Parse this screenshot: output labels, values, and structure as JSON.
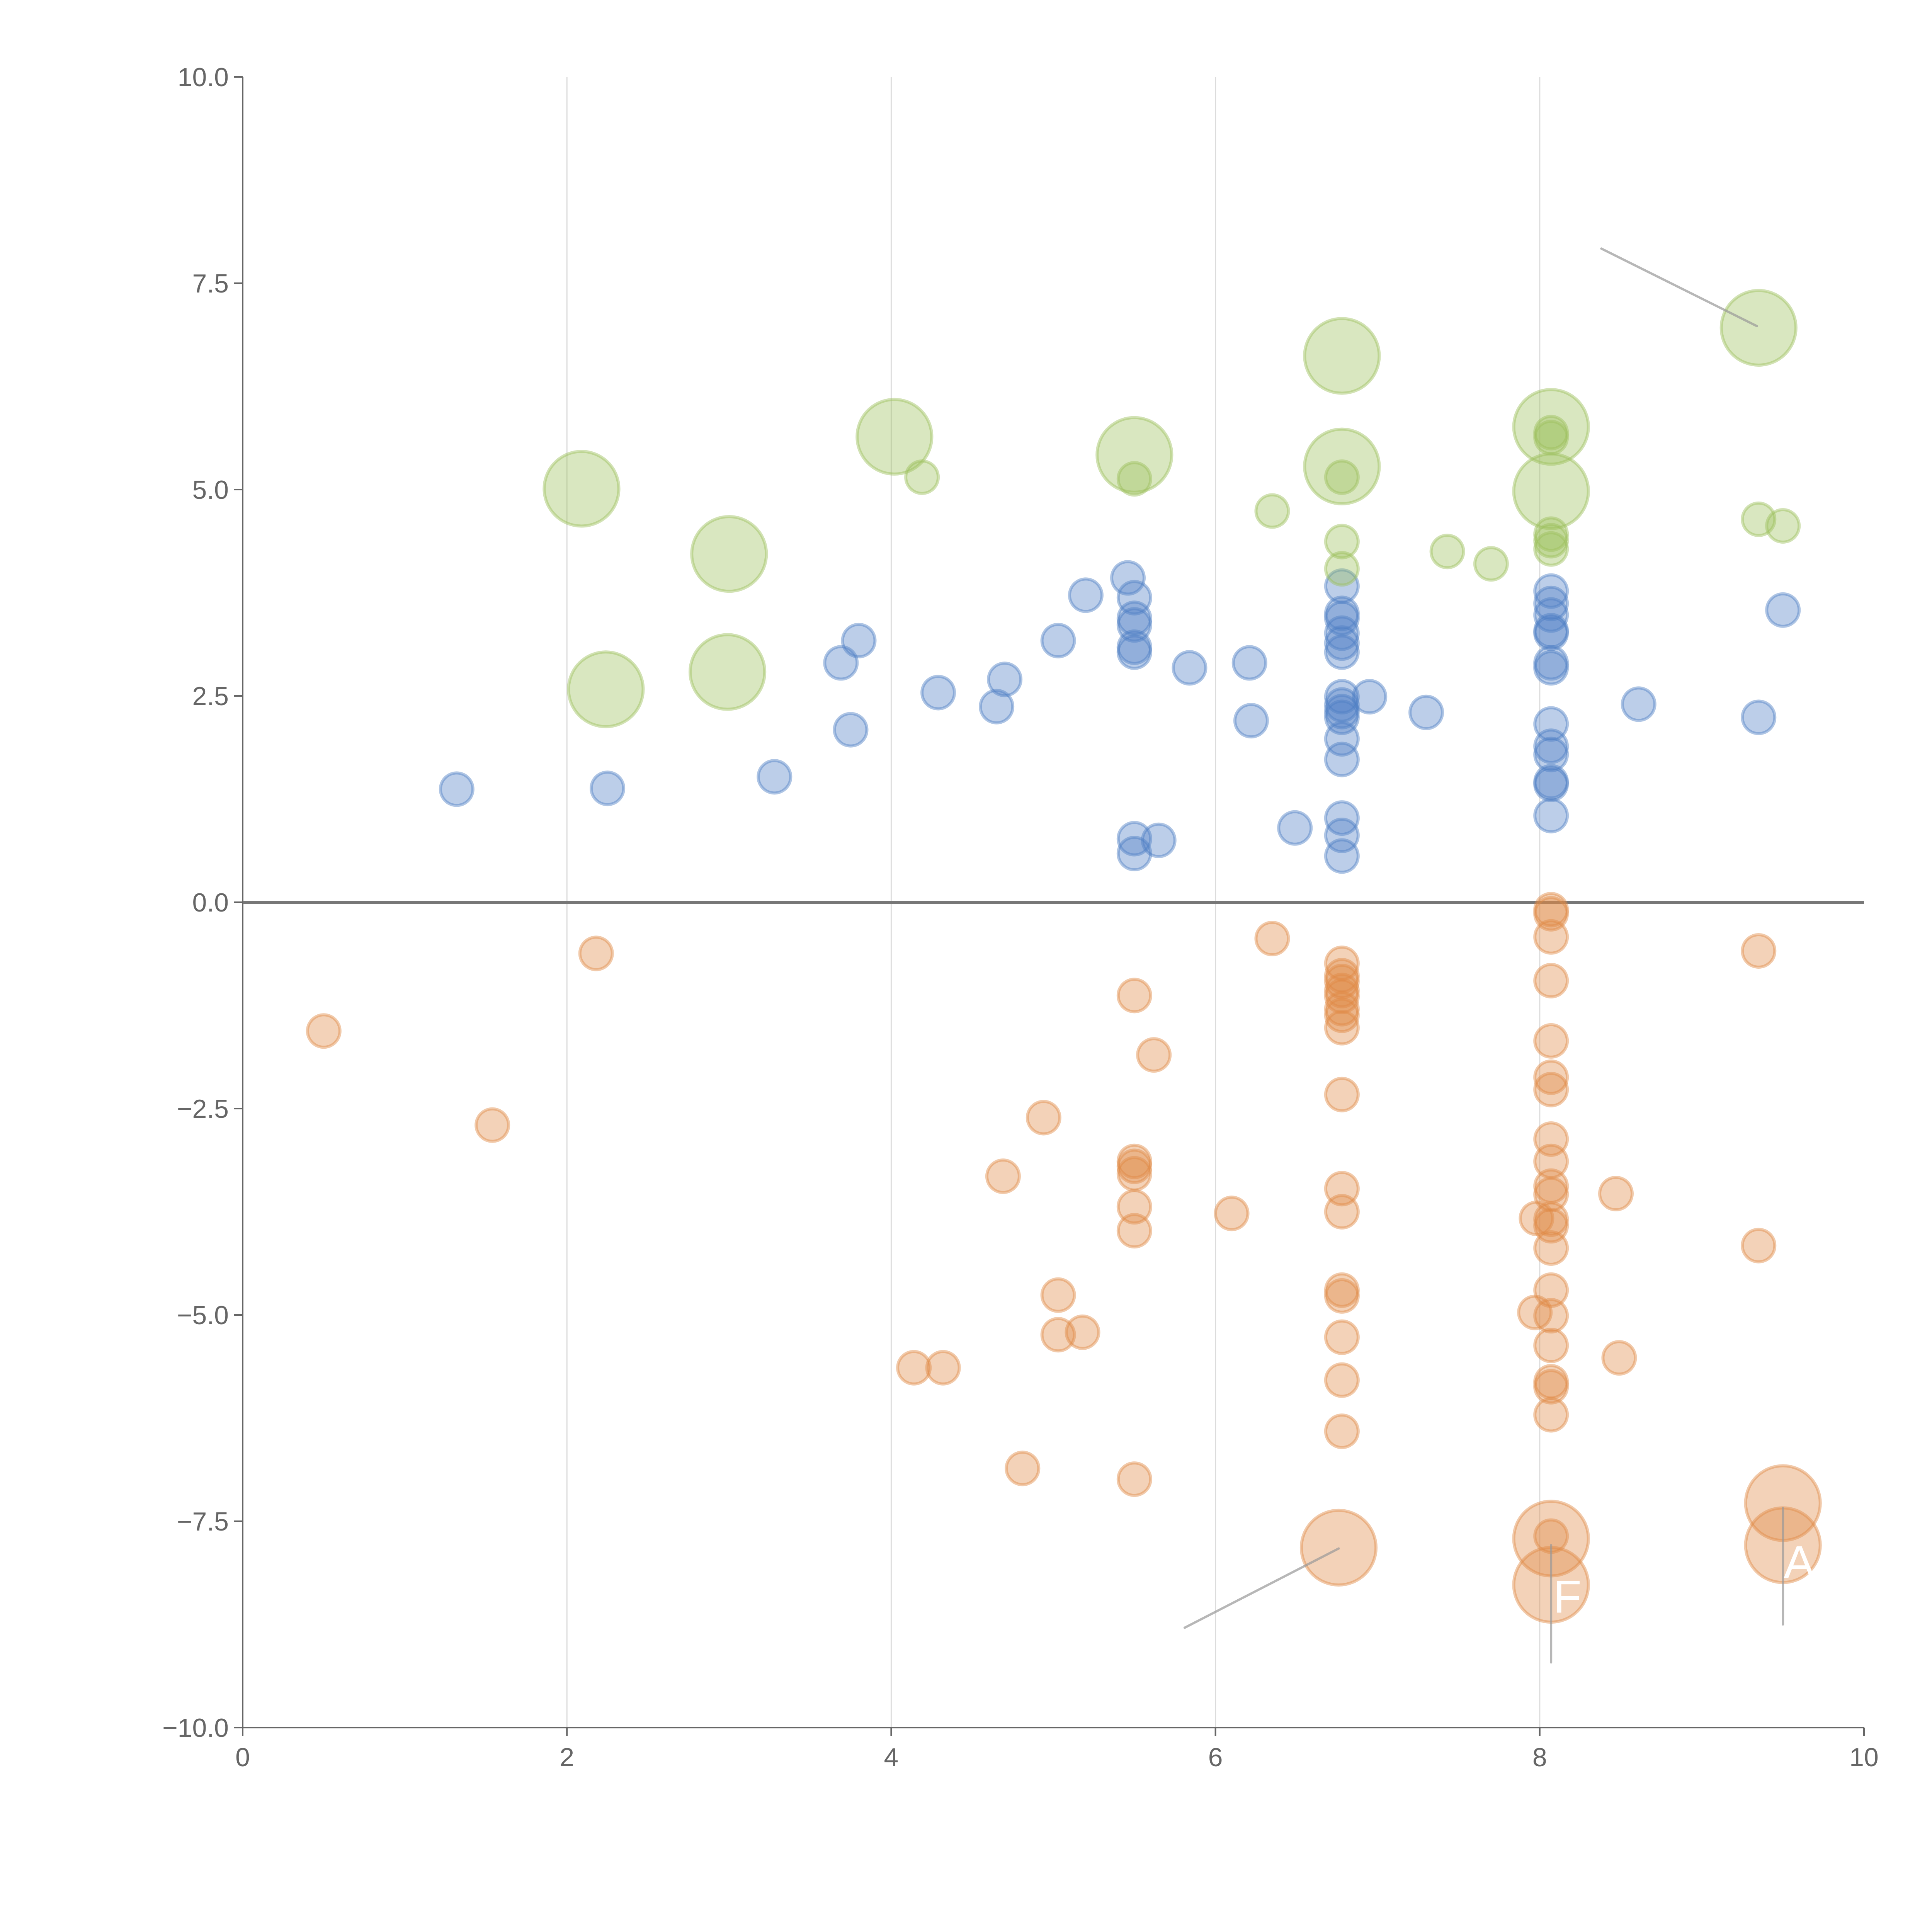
{
  "chart_data": {
    "type": "scatter",
    "title": "",
    "xlabel": "",
    "ylabel": "",
    "xlim": [
      0,
      10
    ],
    "ylim": [
      -10,
      10
    ],
    "xticks": [
      "0",
      "2",
      "4",
      "6",
      "8",
      "10"
    ],
    "xtick_values": [
      0,
      2,
      4,
      6,
      8,
      10
    ],
    "yticks": [
      "10.0",
      "7.5",
      "5.0",
      "2.5",
      "0.0",
      "−2.5",
      "−5.0",
      "−7.5",
      "−10.0"
    ],
    "ytick_values": [
      10,
      7.5,
      5,
      2.5,
      0,
      -2.5,
      -5,
      -7.5,
      -10
    ],
    "grid": "vertical",
    "reference_line_y": 0,
    "series": [
      {
        "name": "blue",
        "color": "#4e7fc4",
        "points": [
          [
            1.32,
            1.37,
            1
          ],
          [
            2.25,
            1.38,
            1
          ],
          [
            3.28,
            1.52,
            1
          ],
          [
            3.69,
            2.9,
            1
          ],
          [
            3.8,
            3.17,
            1
          ],
          [
            3.75,
            2.09,
            1
          ],
          [
            4.29,
            2.54,
            1
          ],
          [
            4.65,
            2.37,
            1
          ],
          [
            4.7,
            2.7,
            1
          ],
          [
            5.03,
            3.17,
            1
          ],
          [
            5.2,
            3.72,
            1
          ],
          [
            5.46,
            3.93,
            1
          ],
          [
            5.5,
            3.69,
            1
          ],
          [
            5.5,
            3.44,
            1
          ],
          [
            5.5,
            3.36,
            1
          ],
          [
            5.5,
            3.09,
            1
          ],
          [
            5.5,
            3.03,
            1
          ],
          [
            5.84,
            2.84,
            1
          ],
          [
            6.21,
            2.9,
            1
          ],
          [
            6.22,
            2.2,
            1
          ],
          [
            5.5,
            0.77,
            1
          ],
          [
            5.5,
            0.59,
            1
          ],
          [
            5.65,
            0.75,
            1
          ],
          [
            6.49,
            0.9,
            1
          ],
          [
            6.78,
            3.83,
            1
          ],
          [
            6.78,
            3.5,
            1
          ],
          [
            6.78,
            3.44,
            1
          ],
          [
            6.78,
            3.26,
            1
          ],
          [
            6.78,
            3.14,
            1
          ],
          [
            6.78,
            3.03,
            1
          ],
          [
            6.78,
            2.49,
            1
          ],
          [
            6.78,
            2.39,
            1
          ],
          [
            6.78,
            2.31,
            1
          ],
          [
            6.78,
            2.24,
            1
          ],
          [
            6.78,
            1.98,
            1
          ],
          [
            6.78,
            1.73,
            1
          ],
          [
            6.78,
            1.02,
            1
          ],
          [
            6.78,
            0.81,
            1
          ],
          [
            6.78,
            0.56,
            1
          ],
          [
            6.95,
            2.49,
            1
          ],
          [
            7.3,
            2.3,
            1
          ],
          [
            8.07,
            3.77,
            1
          ],
          [
            8.07,
            3.62,
            1
          ],
          [
            8.07,
            3.48,
            1
          ],
          [
            8.07,
            3.29,
            1
          ],
          [
            8.07,
            3.26,
            1
          ],
          [
            8.07,
            2.9,
            1
          ],
          [
            8.07,
            2.84,
            1
          ],
          [
            8.07,
            2.16,
            1
          ],
          [
            8.07,
            1.89,
            1
          ],
          [
            8.07,
            1.79,
            1
          ],
          [
            8.07,
            1.46,
            1
          ],
          [
            8.07,
            1.43,
            1
          ],
          [
            8.07,
            1.05,
            1
          ],
          [
            8.61,
            2.4,
            1
          ],
          [
            9.35,
            2.24,
            1
          ],
          [
            9.5,
            3.54,
            1
          ]
        ]
      },
      {
        "name": "green",
        "color": "#9cbf5a",
        "points": [
          [
            2.09,
            5.01,
            2.3
          ],
          [
            2.24,
            2.58,
            2.3
          ],
          [
            3.0,
            4.22,
            2.3
          ],
          [
            2.99,
            2.79,
            2.3
          ],
          [
            4.02,
            5.64,
            2.3
          ],
          [
            5.5,
            5.42,
            2.3
          ],
          [
            6.78,
            6.62,
            2.3
          ],
          [
            6.78,
            5.28,
            2.3
          ],
          [
            8.07,
            5.76,
            2.3
          ],
          [
            8.07,
            4.98,
            2.3
          ],
          [
            9.35,
            6.96,
            2.3
          ],
          [
            4.19,
            5.15,
            1
          ],
          [
            5.5,
            5.13,
            1
          ],
          [
            6.35,
            4.74,
            1
          ],
          [
            6.78,
            5.15,
            1
          ],
          [
            6.78,
            4.37,
            1
          ],
          [
            6.78,
            4.04,
            1
          ],
          [
            7.43,
            4.25,
            1
          ],
          [
            7.7,
            4.1,
            1
          ],
          [
            8.07,
            5.69,
            1
          ],
          [
            8.07,
            5.63,
            1
          ],
          [
            8.07,
            4.46,
            1
          ],
          [
            8.07,
            4.38,
            1
          ],
          [
            8.07,
            4.28,
            1
          ],
          [
            9.35,
            4.64,
            1
          ],
          [
            9.5,
            4.56,
            1
          ]
        ]
      },
      {
        "name": "orange",
        "color": "#e08a45",
        "points": [
          [
            0.5,
            -1.56,
            1
          ],
          [
            1.54,
            -2.7,
            1
          ],
          [
            2.18,
            -0.62,
            1
          ],
          [
            4.14,
            -5.64,
            1
          ],
          [
            4.32,
            -5.64,
            1
          ],
          [
            4.69,
            -3.32,
            1
          ],
          [
            4.81,
            -6.86,
            1
          ],
          [
            4.94,
            -2.61,
            1
          ],
          [
            5.03,
            -4.76,
            1
          ],
          [
            5.03,
            -5.24,
            1
          ],
          [
            5.18,
            -5.21,
            1
          ],
          [
            5.5,
            -1.13,
            1
          ],
          [
            5.62,
            -1.85,
            1
          ],
          [
            5.5,
            -3.14,
            1
          ],
          [
            5.5,
            -3.2,
            1
          ],
          [
            5.5,
            -3.29,
            1
          ],
          [
            5.5,
            -3.69,
            1
          ],
          [
            5.5,
            -3.98,
            1
          ],
          [
            5.5,
            -6.99,
            1
          ],
          [
            6.1,
            -3.77,
            1
          ],
          [
            6.35,
            -0.44,
            1
          ],
          [
            6.78,
            -0.74,
            1
          ],
          [
            6.78,
            -0.89,
            1
          ],
          [
            6.78,
            -0.96,
            1
          ],
          [
            6.78,
            -1.07,
            1
          ],
          [
            6.78,
            -1.14,
            1
          ],
          [
            6.78,
            -1.29,
            1
          ],
          [
            6.78,
            -1.37,
            1
          ],
          [
            6.78,
            -1.52,
            1
          ],
          [
            6.78,
            -2.33,
            1
          ],
          [
            6.78,
            -3.47,
            1
          ],
          [
            6.78,
            -3.75,
            1
          ],
          [
            6.78,
            -4.7,
            1
          ],
          [
            6.78,
            -4.77,
            1
          ],
          [
            6.78,
            -5.27,
            1
          ],
          [
            6.78,
            -5.79,
            1
          ],
          [
            6.78,
            -6.41,
            1
          ],
          [
            8.07,
            -0.09,
            1
          ],
          [
            8.07,
            -0.14,
            1
          ],
          [
            8.07,
            -0.42,
            1
          ],
          [
            8.07,
            -0.95,
            1
          ],
          [
            8.07,
            -1.68,
            1
          ],
          [
            8.07,
            -2.12,
            1
          ],
          [
            8.07,
            -2.27,
            1
          ],
          [
            8.07,
            -2.87,
            1
          ],
          [
            8.07,
            -3.14,
            1
          ],
          [
            8.07,
            -3.44,
            1
          ],
          [
            8.07,
            -3.54,
            1
          ],
          [
            8.07,
            -3.84,
            1
          ],
          [
            8.07,
            -3.92,
            1
          ],
          [
            8.07,
            -4.19,
            1
          ],
          [
            8.07,
            -4.7,
            1
          ],
          [
            8.07,
            -5.01,
            1
          ],
          [
            8.07,
            -5.37,
            1
          ],
          [
            8.07,
            -5.81,
            1
          ],
          [
            8.07,
            -5.87,
            1
          ],
          [
            8.07,
            -6.21,
            1
          ],
          [
            7.98,
            -3.83,
            1
          ],
          [
            7.97,
            -4.97,
            1
          ],
          [
            8.47,
            -3.53,
            1
          ],
          [
            8.49,
            -5.52,
            1
          ],
          [
            9.35,
            -0.59,
            1
          ],
          [
            9.35,
            -4.16,
            1
          ],
          [
            6.76,
            -7.82,
            2.3
          ],
          [
            8.07,
            -7.71,
            2.3
          ],
          [
            8.07,
            -8.27,
            2.3
          ],
          [
            9.5,
            -7.28,
            2.3
          ],
          [
            9.5,
            -7.79,
            2.3
          ],
          [
            8.07,
            -7.68,
            1
          ]
        ]
      }
    ],
    "annotation_lines": [
      {
        "from": [
          8.38,
          7.92
        ],
        "to": [
          9.34,
          6.98
        ]
      },
      {
        "from": [
          5.81,
          -8.79
        ],
        "to": [
          6.76,
          -7.83
        ]
      },
      {
        "from": [
          8.07,
          -7.79
        ],
        "to": [
          8.07,
          -9.21
        ]
      },
      {
        "from": [
          9.5,
          -7.34
        ],
        "to": [
          9.5,
          -8.75
        ]
      }
    ],
    "annotations": [
      {
        "text": "F",
        "at": [
          8.17,
          -8.42
        ]
      },
      {
        "text": "A",
        "at": [
          9.6,
          -8.0
        ]
      }
    ]
  }
}
